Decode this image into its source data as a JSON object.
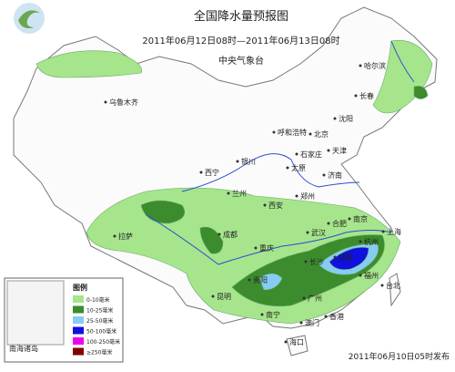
{
  "header": {
    "title": "全国降水量预报图",
    "period": "2011年06月12日08时—2011年06月13日08时",
    "agency": "中央气象台"
  },
  "cities": [
    "乌鲁木齐",
    "哈尔滨",
    "长春",
    "沈阳",
    "呼和浩特",
    "北京",
    "天津",
    "石家庄",
    "太原",
    "银川",
    "济南",
    "西宁",
    "兰州",
    "郑州",
    "西安",
    "合肥",
    "南京",
    "上海",
    "成都",
    "武汉",
    "杭州",
    "拉萨",
    "重庆",
    "长沙",
    "南昌",
    "福州",
    "贵阳",
    "昆明",
    "广州",
    "南宁",
    "香港",
    "澳门",
    "海口",
    "台北"
  ],
  "legend": {
    "title": "图例",
    "inset_label": "南海诸岛",
    "items": [
      {
        "label": "0-10毫米",
        "color": "#a6e58c"
      },
      {
        "label": "10-25毫米",
        "color": "#3c8c2e"
      },
      {
        "label": "25-50毫米",
        "color": "#87ccf2"
      },
      {
        "label": "50-100毫米",
        "color": "#1010e0"
      },
      {
        "label": "100-250毫米",
        "color": "#f000f0"
      },
      {
        "label": "≥250毫米",
        "color": "#800000"
      }
    ]
  },
  "footer": "2011年06月10日05时发布"
}
